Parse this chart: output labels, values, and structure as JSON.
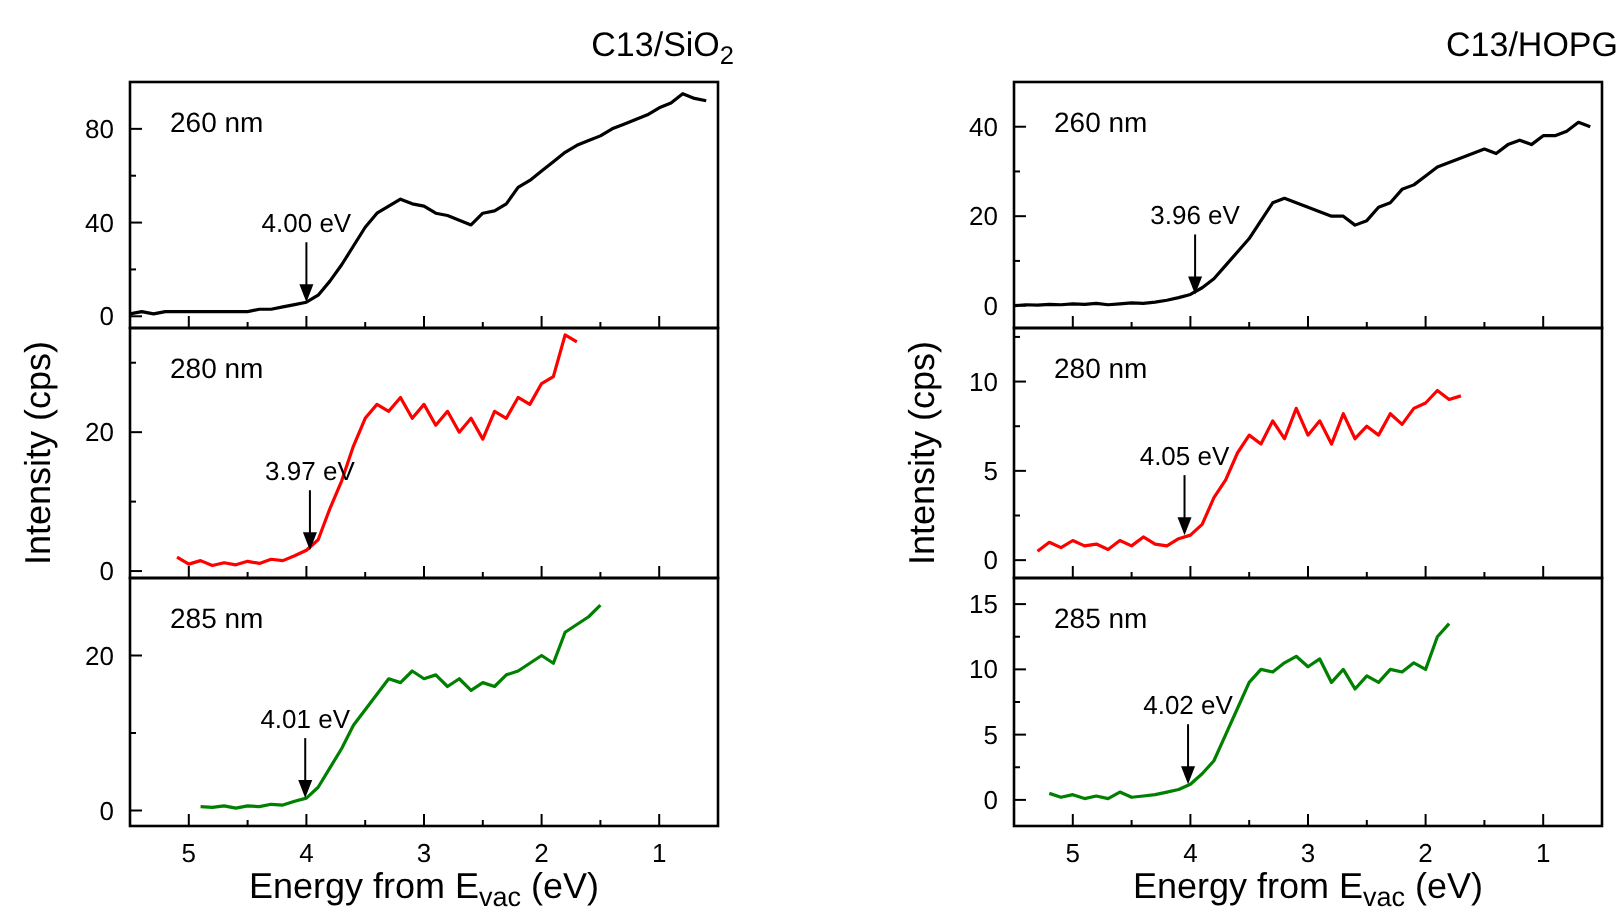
{
  "chart_data": [
    {
      "type": "line",
      "title": "C13/SiO$_{2}$",
      "annotations": [
        "260 nm",
        {
          "text": "4.00 eV",
          "x": 4.0,
          "y": 6
        }
      ],
      "x": [
        5.5,
        5.4,
        5.3,
        5.2,
        5.1,
        5.0,
        4.9,
        4.8,
        4.7,
        4.6,
        4.5,
        4.4,
        4.3,
        4.2,
        4.1,
        4.0,
        3.9,
        3.8,
        3.7,
        3.6,
        3.5,
        3.4,
        3.3,
        3.2,
        3.1,
        3.0,
        2.9,
        2.8,
        2.7,
        2.6,
        2.5,
        2.4,
        2.3,
        2.2,
        2.1,
        2.0,
        1.9,
        1.8,
        1.7,
        1.6,
        1.5,
        1.4,
        1.3,
        1.2,
        1.1,
        1.0,
        0.9,
        0.8,
        0.7,
        0.6
      ],
      "series": [
        {
          "color": "#000000",
          "values": [
            1,
            2,
            1,
            2,
            2,
            2,
            2,
            2,
            2,
            2,
            2,
            3,
            3,
            4,
            5,
            6,
            9,
            15,
            22,
            30,
            38,
            44,
            47,
            50,
            48,
            47,
            44,
            43,
            41,
            39,
            44,
            45,
            48,
            55,
            58,
            62,
            66,
            70,
            73,
            75,
            77,
            80,
            82,
            84,
            86,
            89,
            91,
            95,
            93,
            92
          ]
        }
      ],
      "xlim": [
        5.5,
        0.5
      ],
      "xticks": [
        5,
        {
          "value": 4.5,
          "label": null
        },
        4,
        {
          "value": 3.5,
          "label": null
        },
        3,
        {
          "value": 2.5,
          "label": null
        },
        2,
        {
          "value": 1.5,
          "label": null
        },
        1
      ],
      "ylim": [
        -5,
        100
      ],
      "yticks": [
        0,
        {
          "value": 20,
          "label": null
        },
        40,
        {
          "value": 60,
          "label": null
        },
        80
      ],
      "tick_labels": "y",
      "line_style": "solid"
    },
    {
      "type": "line",
      "ylabel": "Intensity (cps)",
      "annotations": [
        "280 nm",
        {
          "text": "3.97 eV",
          "x": 3.97,
          "y": 3
        }
      ],
      "x": [
        5.1,
        5.0,
        4.9,
        4.8,
        4.7,
        4.6,
        4.5,
        4.4,
        4.3,
        4.2,
        4.1,
        4.0,
        3.9,
        3.8,
        3.7,
        3.6,
        3.5,
        3.4,
        3.3,
        3.2,
        3.1,
        3.0,
        2.9,
        2.8,
        2.7,
        2.6,
        2.5,
        2.4,
        2.3,
        2.2,
        2.1,
        2.0,
        1.9,
        1.8,
        1.7
      ],
      "series": [
        {
          "color": "#ff0000",
          "values": [
            2,
            1,
            1.5,
            0.8,
            1.2,
            0.9,
            1.4,
            1.1,
            1.7,
            1.5,
            2.2,
            3,
            4.5,
            9,
            13,
            18,
            22,
            24,
            23,
            25,
            22,
            24,
            21,
            23,
            20,
            22,
            19,
            23,
            22,
            25,
            24,
            27,
            28,
            34,
            33
          ]
        }
      ],
      "xlim": [
        5.5,
        0.5
      ],
      "xticks": [
        5,
        {
          "value": 4.5,
          "label": null
        },
        4,
        {
          "value": 3.5,
          "label": null
        },
        3,
        {
          "value": 2.5,
          "label": null
        },
        2,
        {
          "value": 1.5,
          "label": null
        },
        1
      ],
      "ylim": [
        -1,
        35
      ],
      "yticks": [
        0,
        {
          "value": 10,
          "label": null
        },
        20,
        {
          "value": 30,
          "label": null
        }
      ],
      "tick_labels": "y",
      "line_style": "solid"
    },
    {
      "type": "line",
      "xlabel": "Energy from E$_{vac}$ (eV)",
      "annotations": [
        "285 nm",
        {
          "text": "4.01 eV",
          "x": 4.01,
          "y": 1.6
        }
      ],
      "x": [
        4.9,
        4.8,
        4.7,
        4.6,
        4.5,
        4.4,
        4.3,
        4.2,
        4.1,
        4.0,
        3.9,
        3.8,
        3.7,
        3.6,
        3.5,
        3.4,
        3.3,
        3.2,
        3.1,
        3.0,
        2.9,
        2.8,
        2.7,
        2.6,
        2.5,
        2.4,
        2.3,
        2.2,
        2.1,
        2.0,
        1.9,
        1.8,
        1.7,
        1.6,
        1.5
      ],
      "series": [
        {
          "color": "#008000",
          "values": [
            0.5,
            0.4,
            0.6,
            0.3,
            0.6,
            0.5,
            0.8,
            0.7,
            1.2,
            1.6,
            3,
            5.5,
            8,
            11,
            13,
            15,
            17,
            16.5,
            18,
            17,
            17.5,
            16,
            17,
            15.5,
            16.5,
            16,
            17.5,
            18,
            19,
            20,
            19,
            23,
            24,
            25,
            26.5
          ]
        }
      ],
      "xlim": [
        5.5,
        0.5
      ],
      "xticks": [
        5,
        {
          "value": 4.5,
          "label": null
        },
        4,
        {
          "value": 3.5,
          "label": null
        },
        3,
        {
          "value": 2.5,
          "label": null
        },
        2,
        {
          "value": 1.5,
          "label": null
        },
        1
      ],
      "ylim": [
        -2,
        30
      ],
      "yticks": [
        0,
        {
          "value": 10,
          "label": null
        },
        20
      ],
      "line_style": "solid"
    },
    {
      "type": "line",
      "title": "C13/HOPG",
      "annotations": [
        "260 nm",
        {
          "text": "3.96 eV",
          "x": 3.96,
          "y": 2.5
        }
      ],
      "x": [
        5.5,
        5.4,
        5.3,
        5.2,
        5.1,
        5.0,
        4.9,
        4.8,
        4.7,
        4.6,
        4.5,
        4.4,
        4.3,
        4.2,
        4.1,
        4.0,
        3.9,
        3.8,
        3.7,
        3.6,
        3.5,
        3.4,
        3.3,
        3.2,
        3.1,
        3.0,
        2.9,
        2.8,
        2.7,
        2.6,
        2.5,
        2.4,
        2.3,
        2.2,
        2.1,
        2.0,
        1.9,
        1.8,
        1.7,
        1.6,
        1.5,
        1.4,
        1.3,
        1.2,
        1.1,
        1.0,
        0.9,
        0.8,
        0.7,
        0.6
      ],
      "series": [
        {
          "color": "#000000",
          "values": [
            0,
            0.2,
            0.1,
            0.3,
            0.2,
            0.4,
            0.3,
            0.5,
            0.2,
            0.4,
            0.6,
            0.5,
            0.8,
            1.2,
            1.8,
            2.5,
            4,
            6,
            9,
            12,
            15,
            19,
            23,
            24,
            23,
            22,
            21,
            20,
            20,
            18,
            19,
            22,
            23,
            26,
            27,
            29,
            31,
            32,
            33,
            34,
            35,
            34,
            36,
            37,
            36,
            38,
            38,
            39,
            41,
            40
          ]
        }
      ],
      "xlim": [
        5.5,
        0.5
      ],
      "xticks": [
        5,
        {
          "value": 4.5,
          "label": null
        },
        4,
        {
          "value": 3.5,
          "label": null
        },
        3,
        {
          "value": 2.5,
          "label": null
        },
        2,
        {
          "value": 1.5,
          "label": null
        },
        1
      ],
      "ylim": [
        -5,
        50
      ],
      "yticks": [
        0,
        {
          "value": 10,
          "label": null
        },
        20,
        {
          "value": 30,
          "label": null
        },
        40
      ],
      "tick_labels": "y",
      "line_style": "solid"
    },
    {
      "type": "line",
      "ylabel": "Intensity (cps)",
      "annotations": [
        "280 nm",
        {
          "text": "4.05 eV",
          "x": 4.05,
          "y": 1.4
        }
      ],
      "x": [
        5.3,
        5.2,
        5.1,
        5.0,
        4.9,
        4.8,
        4.7,
        4.6,
        4.5,
        4.4,
        4.3,
        4.2,
        4.1,
        4.0,
        3.9,
        3.8,
        3.7,
        3.6,
        3.5,
        3.4,
        3.3,
        3.2,
        3.1,
        3.0,
        2.9,
        2.8,
        2.7,
        2.6,
        2.5,
        2.4,
        2.3,
        2.2,
        2.1,
        2.0,
        1.9,
        1.8,
        1.7
      ],
      "series": [
        {
          "color": "#ff0000",
          "values": [
            0.5,
            1,
            0.7,
            1.1,
            0.8,
            0.9,
            0.6,
            1.1,
            0.8,
            1.3,
            0.9,
            0.8,
            1.2,
            1.4,
            2,
            3.5,
            4.5,
            6,
            7,
            6.5,
            7.8,
            6.8,
            8.5,
            7,
            7.8,
            6.5,
            8.2,
            6.8,
            7.5,
            7,
            8.2,
            7.6,
            8.5,
            8.8,
            9.5,
            9,
            9.2
          ]
        }
      ],
      "xlim": [
        5.5,
        0.5
      ],
      "xticks": [
        5,
        {
          "value": 4.5,
          "label": null
        },
        4,
        {
          "value": 3.5,
          "label": null
        },
        3,
        {
          "value": 2.5,
          "label": null
        },
        2,
        {
          "value": 1.5,
          "label": null
        },
        1
      ],
      "ylim": [
        -1,
        13
      ],
      "yticks": [
        0,
        {
          "value": 2.5,
          "label": null
        },
        5,
        {
          "value": 7.5,
          "label": null
        },
        10,
        {
          "value": 12.5,
          "label": null
        }
      ],
      "tick_labels": "y",
      "line_style": "solid"
    },
    {
      "type": "line",
      "xlabel": "Energy from E$_{vac}$ (eV)",
      "annotations": [
        "285 nm",
        {
          "text": "4.02 eV",
          "x": 4.02,
          "y": 1.2
        }
      ],
      "x": [
        5.2,
        5.1,
        5.0,
        4.9,
        4.8,
        4.7,
        4.6,
        4.5,
        4.4,
        4.3,
        4.2,
        4.1,
        4.0,
        3.9,
        3.8,
        3.7,
        3.6,
        3.5,
        3.4,
        3.3,
        3.2,
        3.1,
        3.0,
        2.9,
        2.8,
        2.7,
        2.6,
        2.5,
        2.4,
        2.3,
        2.2,
        2.1,
        2.0,
        1.9,
        1.8
      ],
      "series": [
        {
          "color": "#008000",
          "values": [
            0.5,
            0.2,
            0.4,
            0.1,
            0.3,
            0.1,
            0.6,
            0.2,
            0.3,
            0.4,
            0.6,
            0.8,
            1.2,
            2,
            3,
            5,
            7,
            9,
            10,
            9.8,
            10.5,
            11,
            10.2,
            10.8,
            9,
            10,
            8.5,
            9.5,
            9,
            10,
            9.8,
            10.5,
            10,
            12.5,
            13.5
          ]
        }
      ],
      "xlim": [
        5.5,
        0.5
      ],
      "xticks": [
        5,
        {
          "value": 4.5,
          "label": null
        },
        4,
        {
          "value": 3.5,
          "label": null
        },
        3,
        {
          "value": 2.5,
          "label": null
        },
        2,
        {
          "value": 1.5,
          "label": null
        },
        1
      ],
      "ylim": [
        -2,
        17
      ],
      "yticks": [
        0,
        {
          "value": 2.5,
          "label": null
        },
        5,
        {
          "value": 7.5,
          "label": null
        },
        10,
        {
          "value": 12.5,
          "label": null
        },
        15
      ],
      "line_style": "solid"
    }
  ]
}
